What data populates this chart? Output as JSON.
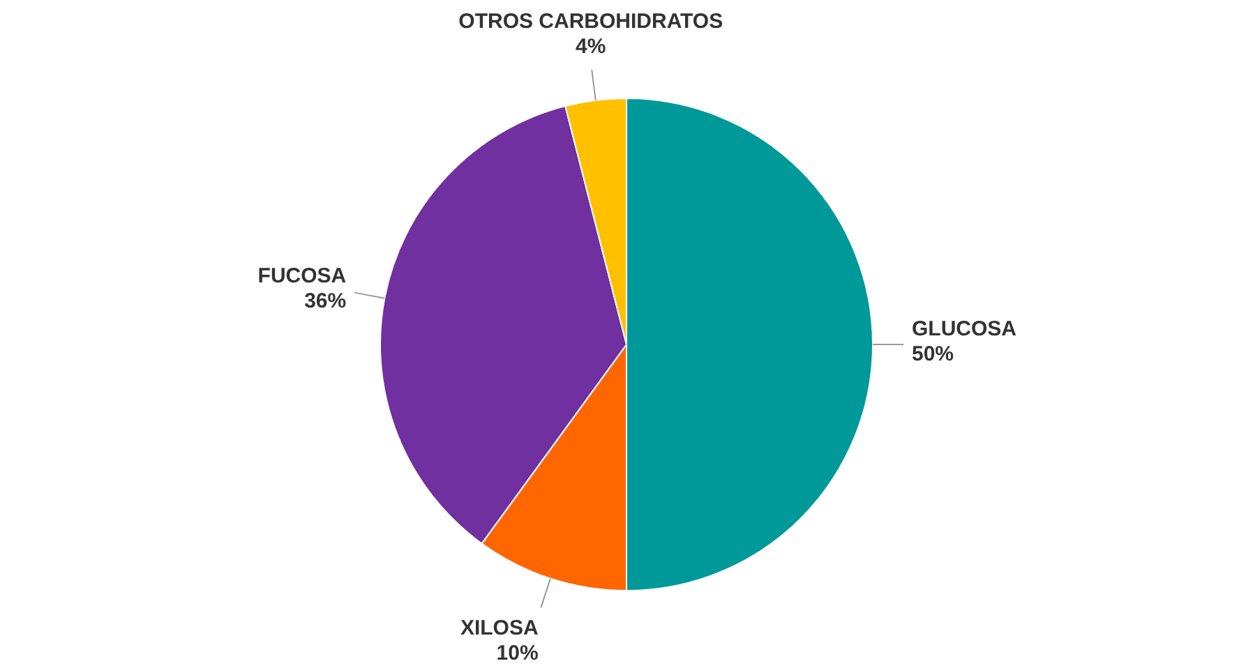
{
  "chart_data": {
    "type": "pie",
    "categories": [
      "GLUCOSA",
      "XILOSA",
      "FUCOSA",
      "OTROS CARBOHIDRATOS"
    ],
    "values": [
      50,
      10,
      36,
      4
    ],
    "colors": [
      "#009999",
      "#ff6600",
      "#7030a0",
      "#ffc000"
    ],
    "value_labels": [
      "50%",
      "10%",
      "36%",
      "4%"
    ],
    "legend": false
  }
}
